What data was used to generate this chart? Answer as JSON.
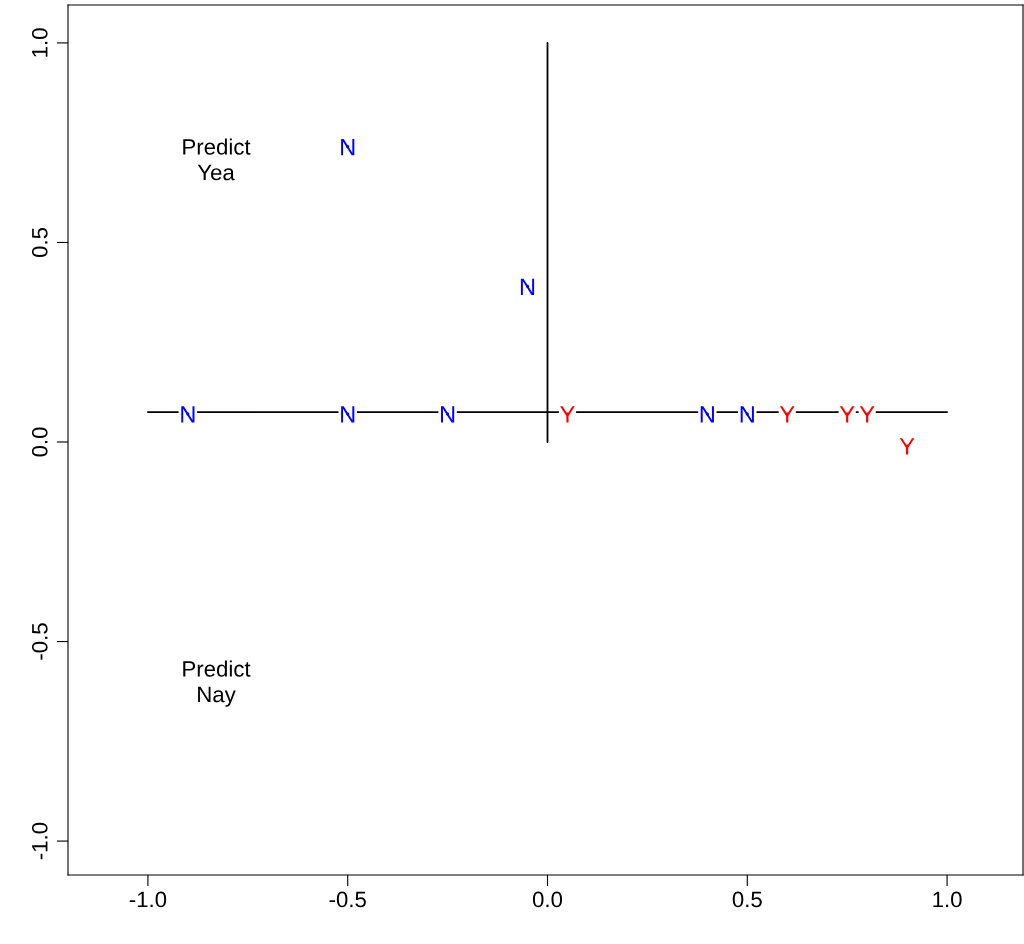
{
  "chart_data": {
    "type": "scatter",
    "xlim": [
      -1.2,
      1.19
    ],
    "ylim": [
      -1.085,
      1.095
    ],
    "xticks": [
      {
        "value": -1,
        "label": "-1.0"
      },
      {
        "value": -0.5,
        "label": "-0.5"
      },
      {
        "value": 0,
        "label": "0.0"
      },
      {
        "value": 0.5,
        "label": "0.5"
      },
      {
        "value": 1,
        "label": "1.0"
      }
    ],
    "yticks": [
      {
        "value": -1,
        "label": "-1.0"
      },
      {
        "value": -0.5,
        "label": "-0.5"
      },
      {
        "value": 0,
        "label": "0.0"
      },
      {
        "value": 0.5,
        "label": "0.5"
      },
      {
        "value": 1,
        "label": "1.0"
      }
    ],
    "grid": false,
    "legend": false,
    "series": [
      {
        "type": "line",
        "color": "#000000",
        "x": [
          -1,
          1
        ],
        "values": [
          0.075,
          0.075
        ]
      },
      {
        "type": "line",
        "color": "#000000",
        "x": [
          0,
          0
        ],
        "values": [
          0,
          1
        ]
      },
      {
        "name": "N",
        "color": "#0000ff",
        "x": [
          -0.5,
          -0.05,
          -0.9,
          -0.5,
          -0.25,
          0.4,
          0.5
        ],
        "values": [
          0.74,
          0.39,
          0.07,
          0.07,
          0.07,
          0.07,
          0.07
        ]
      },
      {
        "name": "Y",
        "color": "#ff0000",
        "x": [
          0.05,
          0.6,
          0.75,
          0.8,
          0.9
        ],
        "values": [
          0.07,
          0.07,
          0.07,
          0.07,
          -0.01
        ]
      }
    ],
    "annotations": [
      "Predict\nYea",
      "Predict\nNay"
    ]
  }
}
